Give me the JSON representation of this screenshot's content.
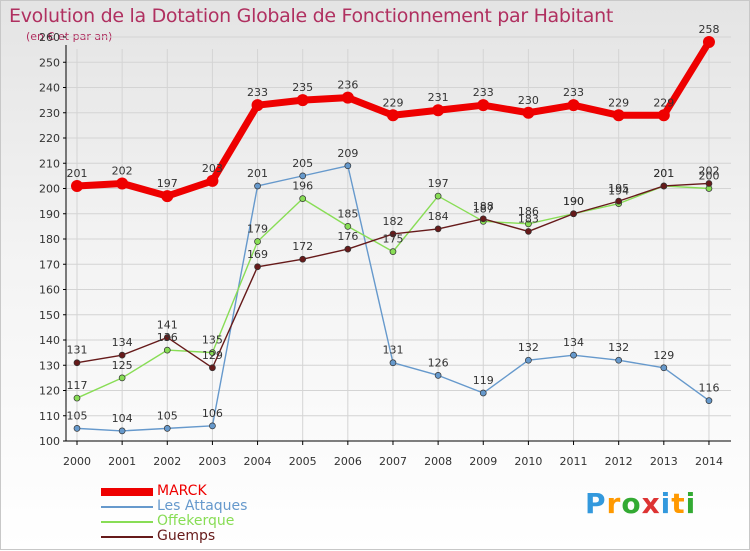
{
  "colors": {
    "title": "#b03060",
    "axis": "#000000",
    "grid": "#d4d4d4",
    "label": "#333333"
  },
  "chart_data": {
    "type": "line",
    "title": "Evolution de la Dotation Globale de Fonctionnement par Habitant",
    "subtitle": "(en € et par an)",
    "xlabel": "",
    "ylabel": "",
    "ylim": [
      100,
      260
    ],
    "ytick_step": 10,
    "grid": true,
    "legend_position": "bottom-left",
    "categories": [
      "2000",
      "2001",
      "2002",
      "2003",
      "2004",
      "2005",
      "2006",
      "2007",
      "2008",
      "2009",
      "2010",
      "2011",
      "2012",
      "2013",
      "2014"
    ],
    "series": [
      {
        "name": "MARCK",
        "color": "#ee0000",
        "width": 7,
        "marker": 6,
        "values": [
          201,
          202,
          197,
          203,
          233,
          235,
          236,
          229,
          231,
          233,
          230,
          233,
          229,
          229,
          258
        ],
        "labels": [
          "201",
          "202",
          "197",
          "203",
          "233",
          "235",
          "236",
          "229",
          "231",
          "233",
          "230",
          "233",
          "229",
          "229",
          "258"
        ]
      },
      {
        "name": "Les Attaques",
        "color": "#6699cc",
        "width": 1.4,
        "marker": 3,
        "values": [
          105,
          104,
          105,
          106,
          201,
          205,
          209,
          131,
          126,
          119,
          132,
          134,
          132,
          129,
          116
        ],
        "labels": [
          "105",
          "104",
          "105",
          "106",
          "201",
          "205",
          "209",
          "131",
          "126",
          "119",
          "132",
          "134",
          "132",
          "129",
          "116"
        ]
      },
      {
        "name": "Offekerque",
        "color": "#88dd55",
        "width": 1.4,
        "marker": 3,
        "values": [
          117,
          125,
          136,
          135,
          179,
          196,
          185,
          175,
          197,
          187,
          186,
          190,
          194,
          201,
          200
        ],
        "labels": [
          "117",
          "125",
          "136",
          "135",
          "179",
          "196",
          "185",
          "175",
          "197",
          "187",
          "186",
          "190",
          "194",
          "201",
          "200"
        ]
      },
      {
        "name": "Guemps",
        "color": "#661a1a",
        "width": 1.4,
        "marker": 3,
        "values": [
          131,
          134,
          141,
          129,
          169,
          172,
          176,
          182,
          184,
          188,
          183,
          190,
          195,
          201,
          202
        ],
        "labels": [
          "131",
          "134",
          "141",
          "129",
          "169",
          "172",
          "176",
          "182",
          "184",
          "188",
          "183",
          "190",
          "195",
          "201",
          "202"
        ]
      }
    ]
  },
  "brand": {
    "letters": [
      "P",
      "r",
      "o",
      "x",
      "i",
      "t",
      "i"
    ],
    "colors": [
      "#3399dd",
      "#ff9900",
      "#33aa33",
      "#dd3333",
      "#3399dd",
      "#ff9900",
      "#33aa33"
    ]
  }
}
